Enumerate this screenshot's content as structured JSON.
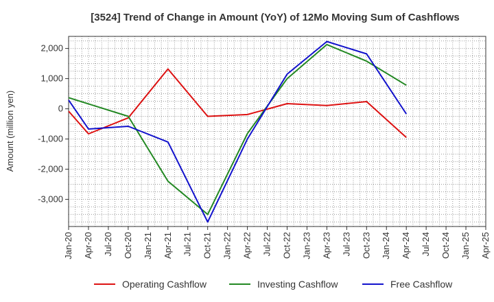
{
  "chart_data": {
    "type": "line",
    "title": "[3524]  Trend of Change in Amount (YoY) of 12Mo Moving Sum of Cashflows",
    "xlabel": "",
    "ylabel": "Amount (million yen)",
    "ylim": [
      -3900,
      2400
    ],
    "yticks": [
      2000,
      1000,
      0,
      -1000,
      -2000,
      -3000
    ],
    "ytick_labels": [
      "2,000",
      "1,000",
      "0",
      "-1,000",
      "-2,000",
      "-3,000"
    ],
    "categories": [
      "Jan-20",
      "Apr-20",
      "Jul-20",
      "Oct-20",
      "Jan-21",
      "Apr-21",
      "Jul-21",
      "Oct-21",
      "Jan-22",
      "Apr-22",
      "Jul-22",
      "Oct-22",
      "Jan-23",
      "Apr-23",
      "Jul-23",
      "Oct-23",
      "Jan-24",
      "Apr-24",
      "Jul-24",
      "Oct-24",
      "Jan-25",
      "Apr-25"
    ],
    "grid": true,
    "legend": "bottom",
    "series": [
      {
        "name": "Operating Cashflow",
        "color": "#dd1111",
        "values": [
          -80,
          -830,
          null,
          -300,
          null,
          1320,
          null,
          -250,
          null,
          -190,
          null,
          170,
          null,
          110,
          null,
          240,
          null,
          -950,
          null,
          null,
          null,
          null
        ]
      },
      {
        "name": "Investing Cashflow",
        "color": "#228822",
        "values": [
          370,
          null,
          null,
          -250,
          null,
          -2400,
          null,
          -3500,
          null,
          -820,
          null,
          1000,
          null,
          2130,
          null,
          1580,
          null,
          780,
          null,
          null,
          null,
          null
        ]
      },
      {
        "name": "Free Cashflow",
        "color": "#1111cc",
        "values": [
          290,
          -670,
          null,
          -580,
          null,
          -1100,
          null,
          -3750,
          null,
          -1000,
          null,
          1150,
          null,
          2230,
          null,
          1820,
          null,
          -170,
          null,
          null,
          null,
          null
        ]
      }
    ]
  }
}
